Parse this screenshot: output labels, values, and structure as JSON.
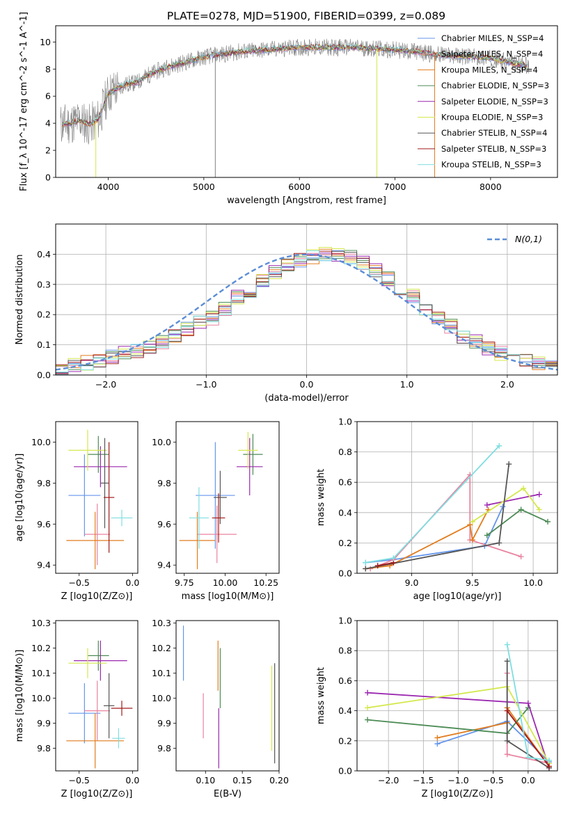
{
  "figure": {
    "title": "PLATE=0278, MJD=51900, FIBERID=0399, z=0.089"
  },
  "colors": {
    "grid": "#b0b0b0",
    "series": [
      "#6495ED",
      "#E9829F",
      "#E27C1E",
      "#4C8B55",
      "#9B27B0",
      "#D4E84D",
      "#555555",
      "#A11A1A",
      "#7FDEE0"
    ]
  },
  "chart_data": [
    {
      "type": "line",
      "panel": "spectrum",
      "title": "PLATE=0278, MJD=51900, FIBERID=0399, z=0.089",
      "xlabel": "wavelength [Angstrom, rest frame]",
      "ylabel": "Flux [f_λ 10^-17 erg cm^-2 s^-1 A^-1]",
      "xlim": [
        3450,
        8700
      ],
      "ylim": [
        0,
        11.2
      ],
      "xticks": [
        4000,
        5000,
        6000,
        7000,
        8000
      ],
      "yticks": [
        0,
        2,
        4,
        6,
        8,
        10
      ],
      "grid": false,
      "legend_position": "right",
      "continuum": {
        "x": [
          3500,
          3600,
          3700,
          3800,
          3900,
          4000,
          4100,
          4200,
          4300,
          4400,
          4500,
          4600,
          4700,
          4800,
          4900,
          5000,
          5200,
          5400,
          5600,
          5800,
          6000,
          6200,
          6400,
          6600,
          6800,
          7000,
          7200,
          7400,
          7600,
          7800,
          8000,
          8200,
          8400
        ],
        "y": [
          3.9,
          4.0,
          4.2,
          3.9,
          4.3,
          6.2,
          6.6,
          6.9,
          7.0,
          7.5,
          7.8,
          8.1,
          8.3,
          8.5,
          8.7,
          8.9,
          9.1,
          9.3,
          9.4,
          9.5,
          9.6,
          9.6,
          9.6,
          9.6,
          9.5,
          9.4,
          9.3,
          9.1,
          9.0,
          8.9,
          8.8,
          8.5,
          8.2
        ]
      },
      "series": [
        {
          "name": "Chabrier MILES, N_SSP=4",
          "color": "#6495ED"
        },
        {
          "name": "Salpeter MILES, N_SSP=4",
          "color": "#E9829F"
        },
        {
          "name": "Kroupa MILES, N_SSP=4",
          "color": "#E27C1E"
        },
        {
          "name": "Chabrier ELODIE, N_SSP=3",
          "color": "#4C8B55"
        },
        {
          "name": "Salpeter ELODIE, N_SSP=3",
          "color": "#9B27B0"
        },
        {
          "name": "Kroupa ELODIE, N_SSP=3",
          "color": "#D4E84D"
        },
        {
          "name": "Chabrier STELIB, N_SSP=4",
          "color": "#555555"
        },
        {
          "name": "Salpeter STELIB, N_SSP=3",
          "color": "#A11A1A"
        },
        {
          "name": "Kroupa STELIB, N_SSP=3",
          "color": "#7FDEE0"
        }
      ]
    },
    {
      "type": "bar",
      "panel": "residuals",
      "xlabel": "(data-model)/error",
      "ylabel": "Normed distribution",
      "xlim": [
        -2.5,
        2.5
      ],
      "ylim": [
        0,
        0.5
      ],
      "xticks": [
        -2,
        -1,
        0,
        1,
        2
      ],
      "yticks": [
        0.0,
        0.1,
        0.2,
        0.3,
        0.4
      ],
      "grid": true,
      "legend_position": "upper right",
      "legend": "N(0,1)",
      "bin_edges": [
        -2.5,
        2.5,
        40
      ],
      "histogram": [
        0.02,
        0.03,
        0.04,
        0.05,
        0.06,
        0.07,
        0.08,
        0.09,
        0.11,
        0.13,
        0.15,
        0.17,
        0.19,
        0.22,
        0.26,
        0.28,
        0.31,
        0.34,
        0.36,
        0.38,
        0.39,
        0.4,
        0.4,
        0.39,
        0.37,
        0.35,
        0.32,
        0.29,
        0.26,
        0.22,
        0.19,
        0.16,
        0.13,
        0.11,
        0.09,
        0.07,
        0.06,
        0.05,
        0.04,
        0.03
      ]
    },
    {
      "type": "scatter",
      "panel": "age-vs-Z",
      "xlabel": "Z [log10(Z/Z⊙)]",
      "ylabel": "age [log10(age/yr)]",
      "xlim": [
        -0.72,
        0.05
      ],
      "ylim": [
        9.36,
        10.1
      ],
      "xticks": [
        -0.5,
        0.0
      ],
      "yticks": [
        9.4,
        9.6,
        9.8,
        10.0
      ],
      "points": [
        {
          "x": -0.45,
          "y": 9.74,
          "xerr": 0.15,
          "yerr": 0.2
        },
        {
          "x": -0.33,
          "y": 9.55,
          "xerr": 0.12,
          "yerr": 0.15
        },
        {
          "x": -0.35,
          "y": 9.52,
          "xerr": 0.27,
          "yerr": 0.14
        },
        {
          "x": -0.32,
          "y": 9.94,
          "xerr": 0.1,
          "yerr": 0.09
        },
        {
          "x": -0.3,
          "y": 9.88,
          "xerr": 0.25,
          "yerr": 0.1
        },
        {
          "x": -0.42,
          "y": 9.96,
          "xerr": 0.18,
          "yerr": 0.1
        },
        {
          "x": -0.26,
          "y": 9.8,
          "xerr": 0.04,
          "yerr": 0.22
        },
        {
          "x": -0.22,
          "y": 9.73,
          "xerr": 0.05,
          "yerr": 0.27
        },
        {
          "x": -0.1,
          "y": 9.63,
          "xerr": 0.1,
          "yerr": 0.04
        }
      ]
    },
    {
      "type": "scatter",
      "panel": "age-vs-mass",
      "xlabel": "mass [log10(M/M⊙)]",
      "ylabel": "",
      "xlim": [
        9.7,
        10.33
      ],
      "ylim": [
        9.36,
        10.1
      ],
      "xticks": [
        9.75,
        10.0,
        10.25
      ],
      "yticks": [
        9.4,
        9.6,
        9.8,
        10.0
      ],
      "points": [
        {
          "x": 9.94,
          "y": 9.74,
          "xerr": 0.12,
          "yerr": 0.26
        },
        {
          "x": 9.95,
          "y": 9.55,
          "xerr": 0.12,
          "yerr": 0.14
        },
        {
          "x": 9.83,
          "y": 9.52,
          "xerr": 0.11,
          "yerr": 0.14
        },
        {
          "x": 10.17,
          "y": 9.94,
          "xerr": 0.06,
          "yerr": 0.1
        },
        {
          "x": 10.15,
          "y": 9.88,
          "xerr": 0.08,
          "yerr": 0.14
        },
        {
          "x": 10.14,
          "y": 9.96,
          "xerr": 0.06,
          "yerr": 0.09
        },
        {
          "x": 9.97,
          "y": 9.73,
          "xerr": 0.04,
          "yerr": 0.13
        },
        {
          "x": 9.96,
          "y": 9.63,
          "xerr": 0.04,
          "yerr": 0.12
        },
        {
          "x": 9.84,
          "y": 9.63,
          "xerr": 0.06,
          "yerr": 0.15
        }
      ]
    },
    {
      "type": "line",
      "panel": "mass-weight-vs-age",
      "xlabel": "age [log10(age/yr)]",
      "ylabel": "mass weight",
      "xlim": [
        8.55,
        10.2
      ],
      "ylim": [
        0,
        1
      ],
      "xticks": [
        9.0,
        9.5,
        10.0
      ],
      "yticks": [
        0.0,
        0.2,
        0.4,
        0.6,
        0.8,
        1.0
      ],
      "grid": true,
      "series": [
        {
          "x": [
            8.62,
            8.85,
            9.6,
            9.75
          ],
          "y": [
            0.07,
            0.09,
            0.18,
            0.44
          ]
        },
        {
          "x": [
            8.66,
            8.85,
            9.48,
            9.48,
            9.9
          ],
          "y": [
            0.03,
            0.09,
            0.65,
            0.22,
            0.11
          ]
        },
        {
          "x": [
            8.62,
            8.82,
            9.48,
            9.5,
            9.63
          ],
          "y": [
            0.03,
            0.05,
            0.32,
            0.22,
            0.42
          ]
        },
        {
          "x": [
            9.62,
            9.9,
            10.12
          ],
          "y": [
            0.25,
            0.42,
            0.34
          ]
        },
        {
          "x": [
            9.62,
            10.05
          ],
          "y": [
            0.45,
            0.52
          ]
        },
        {
          "x": [
            9.5,
            9.92,
            10.05
          ],
          "y": [
            0.34,
            0.56,
            0.42
          ]
        },
        {
          "x": [
            8.62,
            9.72,
            9.8
          ],
          "y": [
            0.03,
            0.2,
            0.72
          ]
        },
        {
          "x": [
            8.72,
            8.85
          ],
          "y": [
            0.05,
            0.07
          ]
        },
        {
          "x": [
            8.62,
            8.85,
            9.72
          ],
          "y": [
            0.07,
            0.1,
            0.84
          ]
        }
      ]
    },
    {
      "type": "scatter",
      "panel": "mass-vs-Z",
      "xlabel": "Z [log10(Z/Z⊙)]",
      "ylabel": "mass [log10(M/M⊙)]",
      "xlim": [
        -0.72,
        0.05
      ],
      "ylim": [
        9.71,
        10.31
      ],
      "xticks": [
        -0.5,
        0.0
      ],
      "yticks": [
        9.8,
        9.9,
        10.0,
        10.1,
        10.2,
        10.3
      ],
      "points": [
        {
          "x": -0.45,
          "y": 9.94,
          "xerr": 0.15,
          "yerr": 0.12
        },
        {
          "x": -0.33,
          "y": 9.95,
          "xerr": 0.12,
          "yerr": 0.12
        },
        {
          "x": -0.35,
          "y": 9.83,
          "xerr": 0.27,
          "yerr": 0.11
        },
        {
          "x": -0.32,
          "y": 10.17,
          "xerr": 0.1,
          "yerr": 0.06
        },
        {
          "x": -0.3,
          "y": 10.15,
          "xerr": 0.25,
          "yerr": 0.08
        },
        {
          "x": -0.42,
          "y": 10.14,
          "xerr": 0.18,
          "yerr": 0.06
        },
        {
          "x": -0.22,
          "y": 9.97,
          "xerr": 0.05,
          "yerr": 0.13
        },
        {
          "x": -0.1,
          "y": 9.96,
          "xerr": 0.1,
          "yerr": 0.03
        },
        {
          "x": -0.13,
          "y": 9.84,
          "xerr": 0.06,
          "yerr": 0.04
        }
      ]
    },
    {
      "type": "scatter",
      "panel": "mass-vs-EBV",
      "xlabel": "E(B-V)",
      "ylabel": "",
      "xlim": [
        0.06,
        0.2
      ],
      "ylim": [
        9.71,
        10.31
      ],
      "xticks": [
        0.1,
        0.15,
        0.2
      ],
      "yticks": [
        9.8,
        9.9,
        10.0,
        10.1,
        10.2,
        10.3
      ],
      "points": [
        {
          "x": 0.07,
          "y": 10.18,
          "yerr": 0.11
        },
        {
          "x": 0.097,
          "y": 9.93,
          "yerr": 0.09
        },
        {
          "x": 0.117,
          "y": 10.13,
          "yerr": 0.1
        },
        {
          "x": 0.12,
          "y": 10.08,
          "yerr": 0.12
        },
        {
          "x": 0.118,
          "y": 9.84,
          "yerr": 0.12
        },
        {
          "x": 0.19,
          "y": 9.96,
          "yerr": 0.17
        },
        {
          "x": 0.194,
          "y": 9.94,
          "yerr": 0.2
        }
      ]
    },
    {
      "type": "line",
      "panel": "mass-weight-vs-Z",
      "xlabel": "Z [log10(Z/Z⊙)]",
      "ylabel": "mass weight",
      "xlim": [
        -2.45,
        0.42
      ],
      "ylim": [
        0,
        1
      ],
      "xticks": [
        -2.0,
        -1.5,
        -1.0,
        -0.5,
        0.0
      ],
      "yticks": [
        0.0,
        0.2,
        0.4,
        0.6,
        0.8,
        1.0
      ],
      "grid": true,
      "series": [
        {
          "x": [
            -1.3,
            -0.3,
            0.3
          ],
          "y": [
            0.18,
            0.33,
            0.06
          ]
        },
        {
          "x": [
            -0.3,
            -0.3,
            0.3
          ],
          "y": [
            0.65,
            0.11,
            0.05
          ]
        },
        {
          "x": [
            -1.3,
            -0.3,
            -0.3,
            0.3
          ],
          "y": [
            0.22,
            0.32,
            0.42,
            0.03
          ]
        },
        {
          "x": [
            -2.3,
            -0.3,
            0.0
          ],
          "y": [
            0.34,
            0.25,
            0.42
          ]
        },
        {
          "x": [
            -2.3,
            0.0,
            0.3
          ],
          "y": [
            0.52,
            0.45,
            0.02
          ]
        },
        {
          "x": [
            -2.3,
            -0.3,
            0.3
          ],
          "y": [
            0.42,
            0.56,
            0.05
          ]
        },
        {
          "x": [
            -0.3,
            -0.3,
            0.3
          ],
          "y": [
            0.73,
            0.2,
            0.02
          ]
        },
        {
          "x": [
            -0.3,
            0.3
          ],
          "y": [
            0.4,
            0.03
          ]
        },
        {
          "x": [
            -0.3,
            0.0,
            0.3
          ],
          "y": [
            0.84,
            0.09,
            0.07
          ]
        }
      ]
    }
  ]
}
